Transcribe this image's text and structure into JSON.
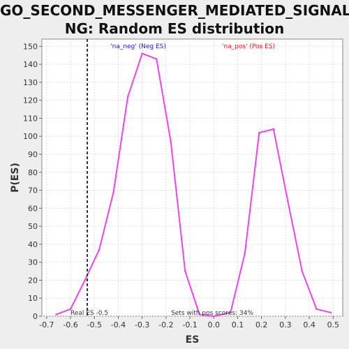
{
  "chart_data": {
    "type": "line",
    "title_line1": "GO_SECOND_MESSENGER_MEDIATED_SIGNALI",
    "title_line2": "NG: Random ES distribution",
    "xlabel": "ES",
    "ylabel": "P(ES)",
    "xlim": [
      -0.72,
      0.54
    ],
    "ylim": [
      0,
      154
    ],
    "xticks": [
      -0.7,
      -0.6,
      -0.5,
      -0.4,
      -0.3,
      -0.2,
      -0.1,
      0.0,
      0.1,
      0.2,
      0.3,
      0.4,
      0.5
    ],
    "xtick_labels": [
      "-0.7",
      "-0.6",
      "-0.5",
      "-0.4",
      "-0.3",
      "-0.2",
      "-0.1",
      "0.0",
      "0.1",
      "0.2",
      "0.3",
      "0.4",
      "0.5"
    ],
    "yticks": [
      0,
      10,
      20,
      30,
      40,
      50,
      60,
      70,
      80,
      90,
      100,
      110,
      120,
      130,
      140,
      150
    ],
    "ytick_labels": [
      "0",
      "10",
      "20",
      "30",
      "40",
      "50",
      "60",
      "70",
      "80",
      "90",
      "100",
      "110",
      "120",
      "130",
      "140",
      "150"
    ],
    "grid": true,
    "series": [
      {
        "color": "#ee44ee",
        "x": [
          -0.66,
          -0.6,
          -0.54,
          -0.48,
          -0.42,
          -0.36,
          -0.3,
          -0.24,
          -0.18,
          -0.12,
          -0.06,
          0.0,
          0.07,
          0.13,
          0.19,
          0.25,
          0.31,
          0.37,
          0.43,
          0.49
        ],
        "y": [
          1,
          4,
          20,
          37,
          69,
          122,
          146,
          143,
          97,
          25,
          1,
          0,
          2,
          35,
          102,
          104,
          64,
          25,
          4,
          2
        ]
      }
    ],
    "real_es_line": {
      "x": -0.53,
      "color": "#333333",
      "label": "Real ES -0.5"
    },
    "legend": [
      {
        "label": "'na_neg' (Neg ES)",
        "color": "#2222cc"
      },
      {
        "label": "'na_pos' (Pos ES)",
        "color": "#dd2222"
      }
    ],
    "annotation": "Sets with pos scores: 34%"
  }
}
